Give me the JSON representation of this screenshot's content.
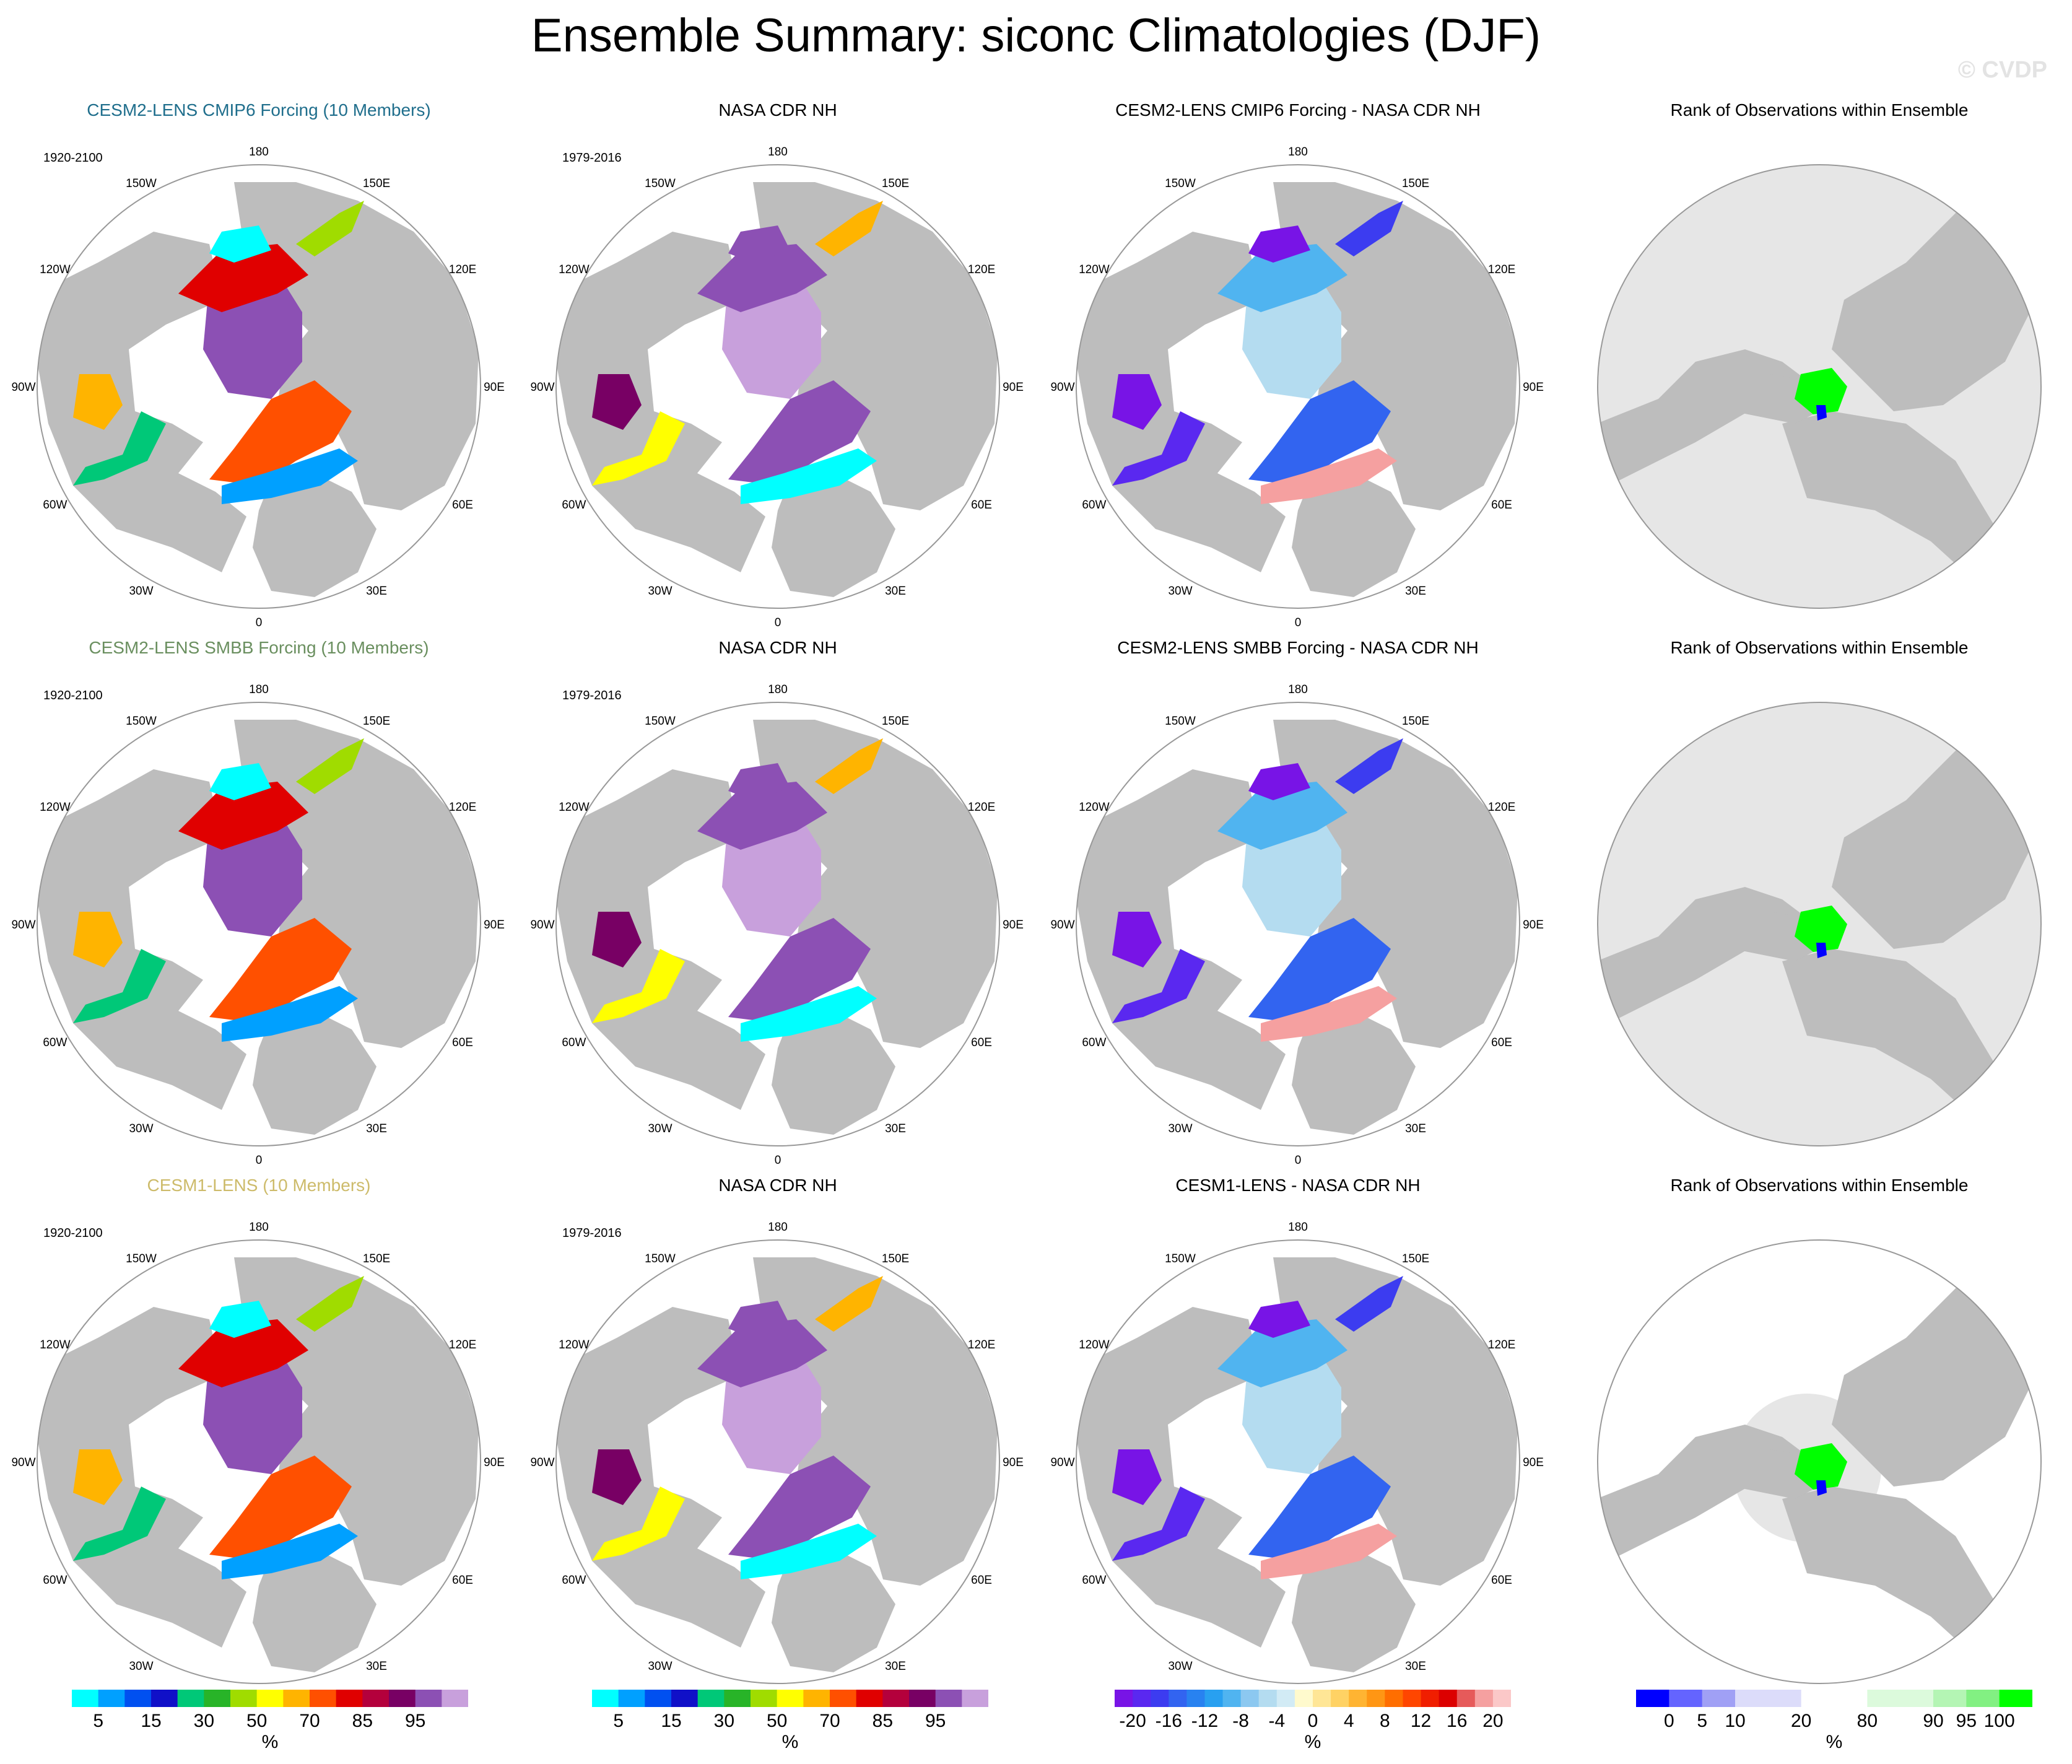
{
  "title": "Ensemble Summary: siconc Climatologies (DJF)",
  "watermark": "© CVDP",
  "colors": {
    "land": "#bdbdbd",
    "ocean": "#ffffff",
    "rank_bg": "#e6e6e6",
    "frame": "#999999",
    "title_cmip6": "#1f6e8c",
    "title_smbb": "#6a8f5f",
    "title_cesm1": "#cdbb6a"
  },
  "lon_labels": [
    "180",
    "150E",
    "120E",
    "90E",
    "60E",
    "30E",
    "0",
    "30W",
    "60W",
    "90W",
    "120W",
    "150W"
  ],
  "rows": [
    {
      "model_title": "CESM2-LENS CMIP6 Forcing (10 Members)",
      "model_title_color": "#1f6e8c",
      "model_period": "1920-2100",
      "obs_title": "NASA CDR NH",
      "obs_period": "1979-2016",
      "diff_title": "CESM2-LENS CMIP6 Forcing - NASA CDR NH",
      "rank_title": "Rank of Observations within Ensemble"
    },
    {
      "model_title": "CESM2-LENS SMBB Forcing (10 Members)",
      "model_title_color": "#6a8f5f",
      "model_period": "1920-2100",
      "obs_title": "NASA CDR NH",
      "obs_period": "1979-2016",
      "diff_title": "CESM2-LENS SMBB Forcing - NASA CDR NH",
      "rank_title": "Rank of Observations within Ensemble"
    },
    {
      "model_title": "CESM1-LENS (10 Members)",
      "model_title_color": "#cdbb6a",
      "model_period": "1920-2100",
      "obs_title": "NASA CDR NH",
      "obs_period": "1979-2016",
      "diff_title": "CESM1-LENS - NASA CDR NH",
      "rank_title": "Rank of Observations within Ensemble"
    }
  ],
  "colorbars": [
    {
      "unit": "%",
      "labels": [
        "5",
        "15",
        "30",
        "50",
        "70",
        "85",
        "95"
      ],
      "label_after_box": [
        1,
        3,
        5,
        7,
        9,
        11,
        13
      ],
      "colors": [
        "#00ffff",
        "#00a0ff",
        "#0050f0",
        "#1010c8",
        "#00c878",
        "#28b428",
        "#a0dc00",
        "#ffff00",
        "#ffb400",
        "#ff5000",
        "#e00000",
        "#b4003c",
        "#780064",
        "#8c50b4",
        "#c8a0dc"
      ]
    },
    {
      "unit": "%",
      "labels": [
        "5",
        "15",
        "30",
        "50",
        "70",
        "85",
        "95"
      ],
      "label_after_box": [
        1,
        3,
        5,
        7,
        9,
        11,
        13
      ],
      "colors": [
        "#00ffff",
        "#00a0ff",
        "#0050f0",
        "#1010c8",
        "#00c878",
        "#28b428",
        "#a0dc00",
        "#ffff00",
        "#ffb400",
        "#ff5000",
        "#e00000",
        "#b4003c",
        "#780064",
        "#8c50b4",
        "#c8a0dc"
      ]
    },
    {
      "unit": "%",
      "labels": [
        "-20",
        "-16",
        "-12",
        "-8",
        "-4",
        "0",
        "4",
        "8",
        "12",
        "16",
        "20"
      ],
      "label_after_box": [
        1,
        3,
        5,
        7,
        9,
        11,
        13,
        15,
        17,
        19,
        21
      ],
      "colors": [
        "#7814e6",
        "#5a28f0",
        "#3c3cf0",
        "#3264f0",
        "#2882f0",
        "#28a0f0",
        "#50b4f0",
        "#8cc8f0",
        "#b4dcf0",
        "#d2ebf5",
        "#fffacd",
        "#ffe696",
        "#ffd264",
        "#ffb432",
        "#ff9614",
        "#ff6e00",
        "#ff4600",
        "#f01e00",
        "#dc0000",
        "#e65a5a",
        "#f5a0a0",
        "#fbc8c8"
      ]
    },
    {
      "unit": "%",
      "labels": [
        "0",
        "5",
        "10",
        "20",
        "80",
        "90",
        "95",
        "100"
      ],
      "label_after_box": [
        1,
        2,
        3,
        5,
        7,
        9,
        10,
        11
      ],
      "colors": [
        "#0000ff",
        "#6464ff",
        "#a0a0f5",
        "#dcdcfa",
        "#dcdcfa",
        "#ffffff",
        "#ffffff",
        "#dcfadc",
        "#dcfadc",
        "#b4f5b4",
        "#82f082",
        "#00ff00"
      ]
    }
  ]
}
